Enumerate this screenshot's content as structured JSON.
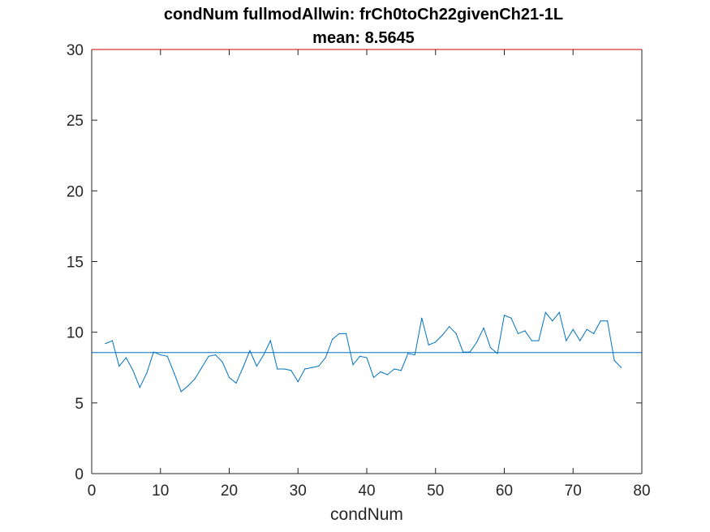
{
  "chart_data": {
    "type": "line",
    "title": "condNum fullmodAllwin: frCh0toCh22givenCh21-1L",
    "subtitle": "mean: 8.5645",
    "xlabel": "condNum",
    "ylabel": "",
    "xlim": [
      0,
      80
    ],
    "ylim": [
      0,
      30
    ],
    "xticks": [
      0,
      10,
      20,
      30,
      40,
      50,
      60,
      70,
      80
    ],
    "yticks": [
      0,
      5,
      10,
      15,
      20,
      25,
      30
    ],
    "grid": false,
    "mean_line": 8.5645,
    "colors": {
      "series": "#0072bd",
      "top_border": "#d00000",
      "axes": "#262626"
    },
    "series": [
      {
        "x": [
          2,
          3,
          4,
          5,
          6,
          7,
          8,
          9,
          10,
          11,
          12,
          13,
          14,
          15,
          16,
          17,
          18,
          19,
          20,
          21,
          22,
          23,
          24,
          25,
          26,
          27,
          28,
          29,
          30,
          31,
          32,
          33,
          34,
          35,
          36,
          37,
          38,
          39,
          40,
          41,
          42,
          43,
          44,
          45,
          46,
          47,
          48,
          49,
          50,
          51,
          52,
          53,
          54,
          55,
          56,
          57,
          58,
          59,
          60,
          61,
          62,
          63,
          64,
          65,
          66,
          67,
          68,
          69,
          70,
          71,
          72,
          73,
          74,
          75,
          76,
          77
        ],
        "y": [
          9.2,
          9.4,
          7.6,
          8.2,
          7.3,
          6.1,
          7.1,
          8.6,
          8.4,
          8.3,
          7.1,
          5.8,
          6.2,
          6.7,
          7.5,
          8.3,
          8.4,
          7.9,
          6.8,
          6.4,
          7.5,
          8.7,
          7.6,
          8.4,
          9.4,
          7.4,
          7.4,
          7.3,
          6.5,
          7.4,
          7.5,
          7.6,
          8.2,
          9.5,
          9.9,
          9.9,
          7.7,
          8.3,
          8.2,
          6.8,
          7.2,
          7.0,
          7.4,
          7.3,
          8.5,
          8.4,
          11.0,
          9.1,
          9.3,
          9.8,
          10.4,
          9.9,
          8.6,
          8.6,
          9.3,
          10.3,
          8.9,
          8.5,
          11.2,
          11.0,
          9.9,
          10.1,
          9.4,
          9.4,
          11.4,
          10.8,
          11.4,
          9.4,
          10.2,
          9.4,
          10.2,
          9.9,
          10.8,
          10.8,
          8.0,
          7.5
        ]
      }
    ]
  }
}
